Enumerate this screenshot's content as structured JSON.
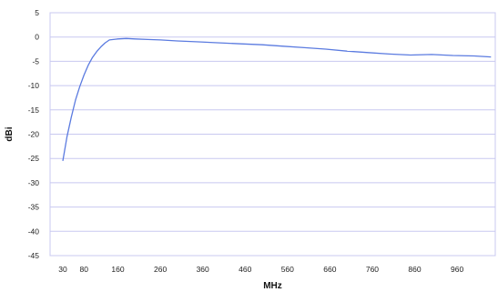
{
  "chart_data": {
    "type": "line",
    "title": "",
    "xlabel": "MHz",
    "ylabel": "dBi",
    "xlim": [
      0,
      1050
    ],
    "ylim": [
      -45,
      5
    ],
    "x_ticks": [
      30,
      80,
      160,
      260,
      360,
      460,
      560,
      660,
      760,
      860,
      960
    ],
    "x_tick_labels": [
      "30",
      "80",
      "160",
      "260",
      "360",
      "460",
      "560",
      "660",
      "760",
      "860",
      "960"
    ],
    "y_ticks": [
      5,
      0,
      -5,
      -10,
      -15,
      -20,
      -25,
      -30,
      -35,
      -40,
      -45
    ],
    "y_tick_labels": [
      "5",
      "0",
      "-5",
      "-10",
      "-15",
      "-20",
      "-25",
      "-30",
      "-35",
      "-40",
      "-45"
    ],
    "grid": true,
    "legend": "none",
    "series": [
      {
        "color": "#5b7be0",
        "x": [
          30,
          40,
          50,
          60,
          70,
          80,
          90,
          100,
          110,
          120,
          130,
          140,
          160,
          180,
          200,
          230,
          260,
          300,
          350,
          400,
          450,
          500,
          550,
          600,
          650,
          700,
          750,
          800,
          850,
          900,
          950,
          1000,
          1040
        ],
        "y": [
          -25.5,
          -20.5,
          -16.5,
          -13.0,
          -10.2,
          -7.8,
          -5.8,
          -4.2,
          -3.0,
          -2.0,
          -1.2,
          -0.6,
          -0.4,
          -0.3,
          -0.4,
          -0.5,
          -0.6,
          -0.8,
          -1.0,
          -1.2,
          -1.4,
          -1.6,
          -1.9,
          -2.2,
          -2.5,
          -2.9,
          -3.2,
          -3.5,
          -3.7,
          -3.6,
          -3.8,
          -3.9,
          -4.1
        ]
      }
    ]
  }
}
